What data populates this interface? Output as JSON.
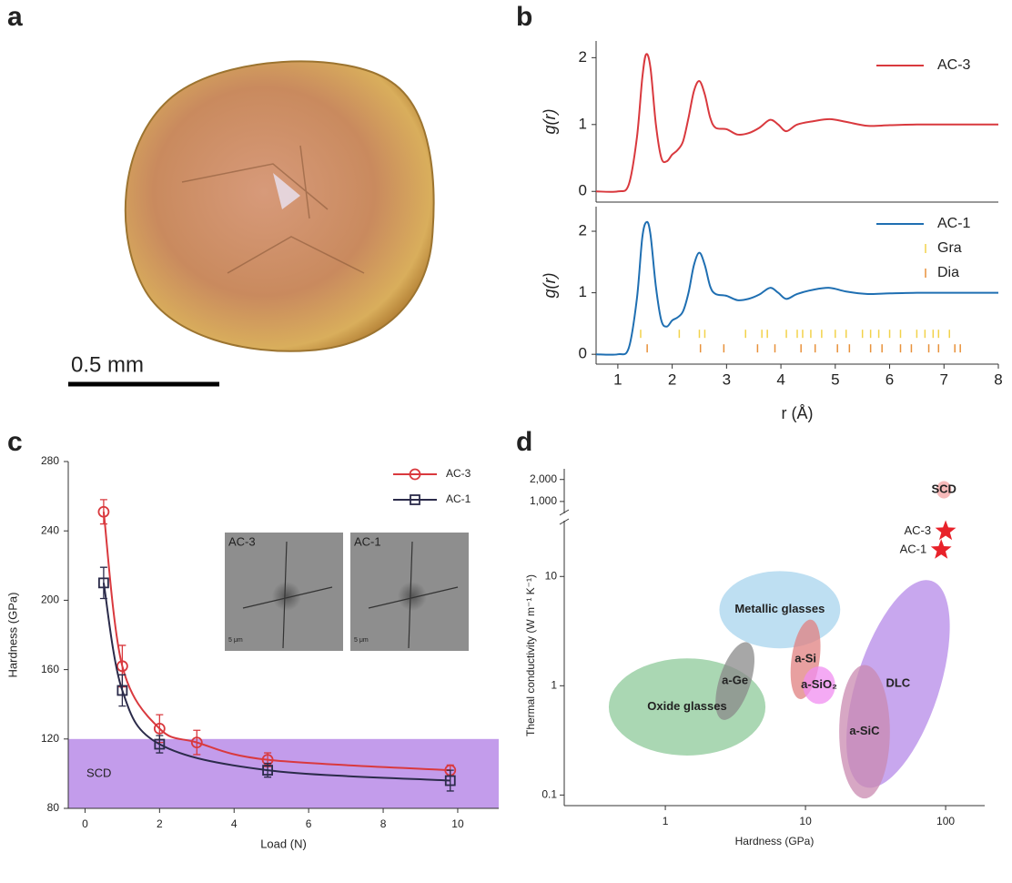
{
  "panel_labels": [
    "a",
    "b",
    "c",
    "d"
  ],
  "scale_bar": "0.5 mm",
  "chart_data": [
    {
      "type": "line",
      "ylabel": "g(r)",
      "xlim": [
        0.6,
        8
      ],
      "ylim": [
        -0.16,
        2.25
      ],
      "yticks": [
        0,
        1,
        2
      ],
      "legend": "upper right",
      "series": [
        {
          "name": "AC-3",
          "color": "#d9393e",
          "x": [
            0.6,
            1.0,
            1.2,
            1.35,
            1.45,
            1.52,
            1.6,
            1.7,
            1.8,
            1.9,
            2.0,
            2.1,
            2.2,
            2.3,
            2.4,
            2.5,
            2.6,
            2.7,
            2.8,
            3.0,
            3.2,
            3.4,
            3.6,
            3.8,
            3.95,
            4.1,
            4.3,
            4.6,
            4.9,
            5.2,
            5.6,
            6.0,
            6.5,
            7.0,
            7.5,
            8.0
          ],
          "values": [
            0,
            0,
            0.1,
            0.8,
            1.7,
            2.05,
            1.85,
            1.0,
            0.5,
            0.45,
            0.55,
            0.62,
            0.75,
            1.1,
            1.5,
            1.65,
            1.45,
            1.1,
            0.95,
            0.93,
            0.85,
            0.87,
            0.95,
            1.07,
            1.0,
            0.9,
            1.0,
            1.05,
            1.08,
            1.04,
            0.98,
            0.99,
            1.0,
            1.0,
            1.0,
            1.0
          ]
        }
      ]
    },
    {
      "type": "line",
      "ylabel": "g(r)",
      "xlabel": "r (Å)",
      "xlim": [
        0.6,
        8
      ],
      "ylim": [
        -0.16,
        2.4
      ],
      "xticks": [
        1,
        2,
        3,
        4,
        5,
        6,
        7,
        8
      ],
      "yticks": [
        0,
        1,
        2
      ],
      "legend": "upper right",
      "series": [
        {
          "name": "AC-1",
          "color": "#1f6fb2",
          "x": [
            0.6,
            1.0,
            1.2,
            1.35,
            1.45,
            1.53,
            1.6,
            1.7,
            1.8,
            1.9,
            2.0,
            2.1,
            2.2,
            2.3,
            2.4,
            2.5,
            2.6,
            2.7,
            2.8,
            3.0,
            3.2,
            3.4,
            3.6,
            3.8,
            3.95,
            4.1,
            4.3,
            4.6,
            4.9,
            5.2,
            5.6,
            6.0,
            6.5,
            7.0,
            7.5,
            8.0
          ],
          "values": [
            0,
            0,
            0.1,
            0.9,
            1.9,
            2.15,
            1.95,
            1.1,
            0.55,
            0.45,
            0.55,
            0.6,
            0.7,
            1.0,
            1.45,
            1.65,
            1.45,
            1.1,
            0.98,
            0.95,
            0.88,
            0.9,
            0.97,
            1.08,
            1.0,
            0.9,
            0.98,
            1.05,
            1.08,
            1.02,
            0.98,
            0.99,
            1.0,
            1.0,
            1.0,
            1.0
          ]
        },
        {
          "name": "Gra",
          "color": "#f2d24a",
          "mark": "stick",
          "x": [
            1.42,
            2.13,
            2.5,
            2.6,
            3.35,
            3.65,
            3.75,
            4.1,
            4.3,
            4.4,
            4.55,
            4.75,
            5.0,
            5.2,
            5.5,
            5.65,
            5.8,
            6.0,
            6.2,
            6.5,
            6.65,
            6.8,
            6.9,
            7.1
          ]
        },
        {
          "name": "Dia",
          "color": "#e8913a",
          "mark": "stick",
          "x": [
            1.54,
            2.52,
            2.95,
            3.57,
            3.89,
            4.37,
            4.63,
            5.04,
            5.26,
            5.65,
            5.86,
            6.2,
            6.4,
            6.72,
            6.9,
            7.2,
            7.3
          ]
        }
      ]
    },
    {
      "type": "line",
      "xlabel": "Load (N)",
      "ylabel": "Hardness (GPa)",
      "xlim": [
        -0.45,
        11.1
      ],
      "ylim": [
        80,
        280
      ],
      "xticks": [
        0,
        2,
        4,
        6,
        8,
        10
      ],
      "yticks": [
        80,
        120,
        160,
        200,
        240,
        280
      ],
      "legend": "upper right",
      "smooth": true,
      "band": {
        "label": "SCD",
        "from": 80,
        "to": 120,
        "color": "#b98be8"
      },
      "inset_labels": [
        "AC-3",
        "AC-1"
      ],
      "inset_scale": "5 μm",
      "series": [
        {
          "name": "AC-3",
          "color": "#d9393e",
          "marker": "circle",
          "x": [
            0.5,
            1,
            2,
            3,
            4.9,
            9.8
          ],
          "values": [
            251,
            162,
            126,
            118,
            108,
            102
          ],
          "errors": [
            7,
            12,
            8,
            7,
            4,
            3
          ]
        },
        {
          "name": "AC-1",
          "color": "#2b2b4a",
          "marker": "square",
          "x": [
            0.5,
            1,
            2,
            4.9,
            9.8
          ],
          "values": [
            210,
            148,
            117,
            102,
            96
          ],
          "errors": [
            9,
            9,
            5,
            4,
            6
          ]
        }
      ]
    },
    {
      "type": "region",
      "xlabel": "Hardness (GPa)",
      "ylabel": "Thermal conductivity (W m⁻¹ K⁻¹)",
      "xscale": "log",
      "yscale": "log",
      "xlim": [
        0.19,
        190
      ],
      "ylim": [
        0.08,
        2800
      ],
      "ybreak": [
        30,
        770
      ],
      "xticks": [
        1,
        10,
        100
      ],
      "yticks": [
        0.1,
        1,
        10,
        {
          "value": 1000,
          "label": "1,000"
        },
        {
          "value": 2000,
          "label": "2,000"
        }
      ],
      "regions": [
        {
          "name": "Oxide glasses",
          "color": "#8ec99a",
          "x_range": [
            0.395,
            5.18
          ],
          "y_range": [
            0.23,
            1.78
          ],
          "tilt": 0
        },
        {
          "name": "Metallic glasses",
          "color": "#a8d4ee",
          "x_range": [
            2.43,
            17.7
          ],
          "y_range": [
            2.2,
            11.2
          ],
          "tilt": 0
        },
        {
          "name": "a-Ge",
          "color": "#8a8a8a",
          "x_range": [
            2.43,
            4.06
          ],
          "y_range": [
            0.47,
            2.6
          ],
          "tilt": 18
        },
        {
          "name": "a-Si",
          "color": "#e08080",
          "x_range": [
            7.95,
            12.6
          ],
          "y_range": [
            0.75,
            4.06
          ],
          "tilt": 8
        },
        {
          "name": "a-SiO₂",
          "color": "#f08ef0",
          "x_range": [
            9.6,
            16.3
          ],
          "y_range": [
            0.68,
            1.5
          ],
          "tilt": 0
        },
        {
          "name": "DLC",
          "color": "#b58ae8",
          "x_range": [
            23.2,
            90.4
          ],
          "y_range": [
            0.106,
            10.2
          ],
          "tilt": 18
        },
        {
          "name": "a-SiC",
          "color": "#c98ab0",
          "x_range": [
            17.4,
            40
          ],
          "y_range": [
            0.093,
            1.55
          ],
          "tilt": 0
        },
        {
          "name": "SCD",
          "color": "#f3a3a3",
          "x_range": [
            86,
            110
          ],
          "y_range": [
            1100,
            1900
          ],
          "tilt": 0
        }
      ],
      "points": [
        {
          "name": "AC-3",
          "color": "#e8222a",
          "x": 100,
          "y": 26
        },
        {
          "name": "AC-1",
          "color": "#e8222a",
          "x": 93,
          "y": 17.5
        }
      ]
    }
  ]
}
